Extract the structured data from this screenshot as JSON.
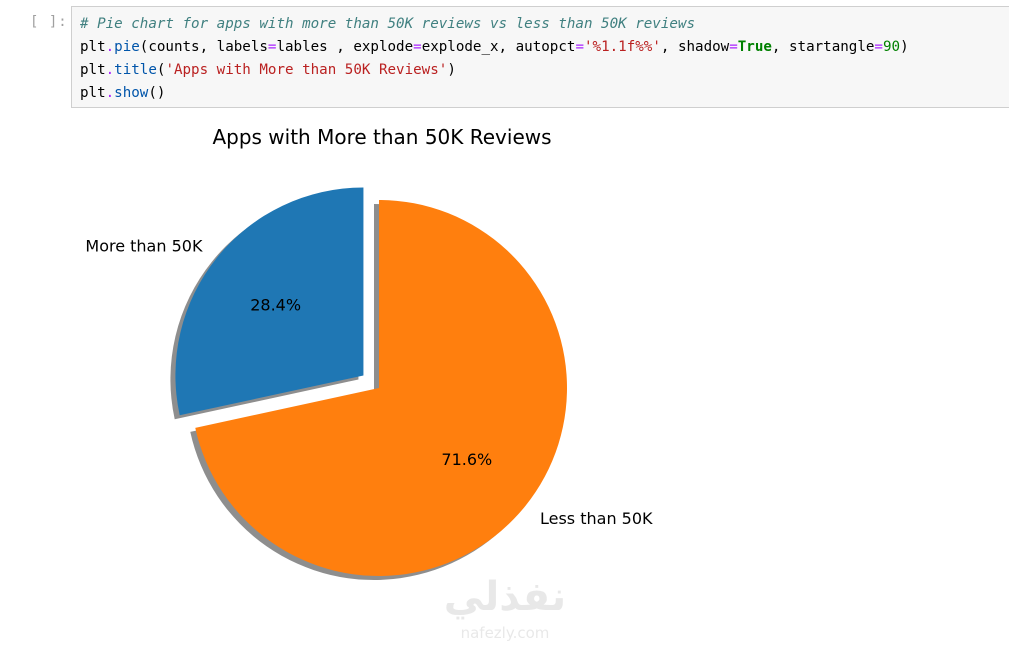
{
  "cell": {
    "prompt": "[ ]:",
    "code_lines": [
      [
        {
          "t": "# Pie chart for apps with more than 50K reviews vs less than 50K reviews",
          "c": "cm"
        }
      ],
      [
        {
          "t": "plt",
          "c": ""
        },
        {
          "t": ".",
          "c": "op"
        },
        {
          "t": "pie",
          "c": "fn"
        },
        {
          "t": "(counts, labels",
          "c": ""
        },
        {
          "t": "=",
          "c": "op"
        },
        {
          "t": "lables , explode",
          "c": ""
        },
        {
          "t": "=",
          "c": "op"
        },
        {
          "t": "explode_x, autopct",
          "c": ""
        },
        {
          "t": "=",
          "c": "op"
        },
        {
          "t": "'%1.1f%%'",
          "c": "str"
        },
        {
          "t": ", shadow",
          "c": ""
        },
        {
          "t": "=",
          "c": "op"
        },
        {
          "t": "True",
          "c": "kw"
        },
        {
          "t": ", startangle",
          "c": ""
        },
        {
          "t": "=",
          "c": "op"
        },
        {
          "t": "90",
          "c": "num"
        },
        {
          "t": ")",
          "c": ""
        }
      ],
      [
        {
          "t": "plt",
          "c": ""
        },
        {
          "t": ".",
          "c": "op"
        },
        {
          "t": "title",
          "c": "fn"
        },
        {
          "t": "(",
          "c": ""
        },
        {
          "t": "'Apps with More than 50K Reviews'",
          "c": "str"
        },
        {
          "t": ")",
          "c": ""
        }
      ],
      [
        {
          "t": "plt",
          "c": ""
        },
        {
          "t": ".",
          "c": "op"
        },
        {
          "t": "show",
          "c": "fn"
        },
        {
          "t": "()",
          "c": ""
        }
      ]
    ]
  },
  "chart_data": {
    "type": "pie",
    "title": "Apps with More than 50K Reviews",
    "slices": [
      {
        "label": "More than 50K",
        "value": 28.4,
        "pct_label": "28.4%",
        "color": "#1f77b4",
        "exploded": true
      },
      {
        "label": "Less than 50K",
        "value": 71.6,
        "pct_label": "71.6%",
        "color": "#ff7f0e",
        "exploded": false
      }
    ],
    "startangle": 90,
    "shadow": true,
    "shadow_color": "#8e8e8e"
  },
  "watermark": {
    "arabic": "نفذلي",
    "latin": "nafezly.com"
  }
}
